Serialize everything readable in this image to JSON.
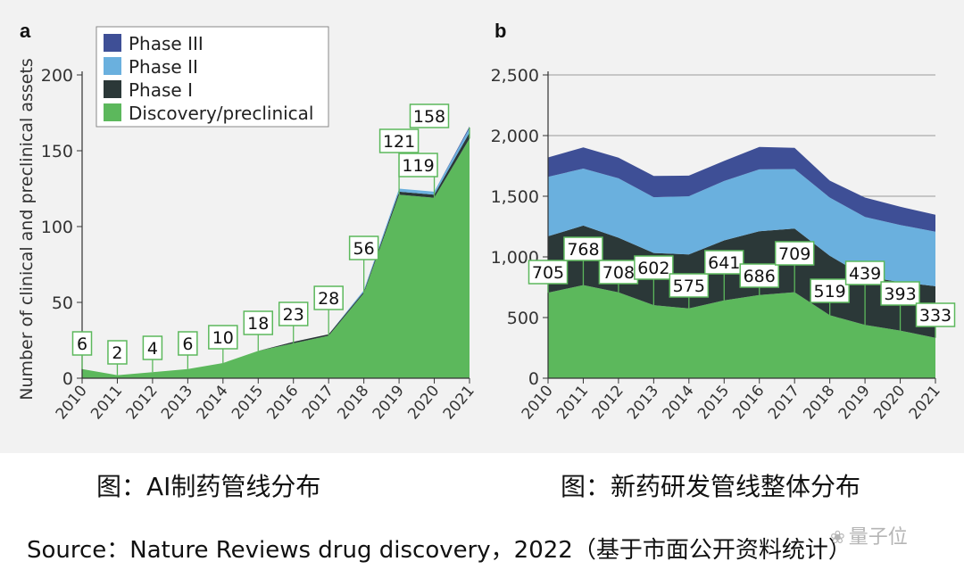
{
  "captions": {
    "panel_a": "图：AI制药管线分布",
    "panel_b": "图：新药研发管线整体分布",
    "source": "Source：Nature Reviews drug discovery，2022（基于市面公开资料统计）",
    "watermark": "量子位"
  },
  "colors": {
    "phase3": "#3e4f96",
    "phase2": "#6ab0de",
    "phase1": "#2b3838",
    "discovery": "#5cb85c",
    "label_border": "#5cb85c"
  },
  "chart_data": [
    {
      "panel": "a",
      "type": "area",
      "stacked": true,
      "ylabel": "Number of clinical and preclinical assets",
      "x": [
        "2010",
        "2011",
        "2012",
        "2013",
        "2014",
        "2015",
        "2016",
        "2017",
        "2018",
        "2019",
        "2020",
        "2021"
      ],
      "ylim": [
        0,
        200
      ],
      "yticks": [
        0,
        50,
        100,
        150,
        200
      ],
      "legend": [
        "Phase III",
        "Phase II",
        "Phase I",
        "Discovery/preclinical"
      ],
      "legend_position": "top-left",
      "series": [
        {
          "name": "Discovery/preclinical",
          "values": [
            6,
            2,
            4,
            6,
            10,
            18,
            23,
            28,
            56,
            121,
            119,
            158
          ]
        },
        {
          "name": "Phase I",
          "values": [
            0,
            0,
            0,
            0,
            0,
            0,
            1,
            1,
            1,
            2,
            2,
            4
          ]
        },
        {
          "name": "Phase II",
          "values": [
            0,
            0,
            0,
            0,
            0,
            0,
            0,
            0,
            1,
            2,
            2,
            3
          ]
        },
        {
          "name": "Phase III",
          "values": [
            0,
            0,
            0,
            0,
            0,
            0,
            0,
            0,
            0,
            0,
            0,
            1
          ]
        }
      ],
      "labels": [
        "6",
        "2",
        "4",
        "6",
        "10",
        "18",
        "23",
        "28",
        "56",
        "121",
        "119",
        "158"
      ]
    },
    {
      "panel": "b",
      "type": "area",
      "stacked": true,
      "x": [
        "2010",
        "2011",
        "2012",
        "2013",
        "2014",
        "2015",
        "2016",
        "2017",
        "2018",
        "2019",
        "2020",
        "2021"
      ],
      "ylim": [
        0,
        2500
      ],
      "yticks": [
        "0",
        "500",
        "1,000",
        "1,500",
        "2,000",
        "2,500"
      ],
      "ytick_values": [
        0,
        500,
        1000,
        1500,
        2000,
        2500
      ],
      "series": [
        {
          "name": "Discovery/preclinical",
          "values": [
            705,
            768,
            708,
            602,
            575,
            641,
            686,
            709,
            519,
            439,
            393,
            333
          ]
        },
        {
          "name": "Phase I",
          "values": [
            465,
            490,
            450,
            430,
            445,
            495,
            525,
            525,
            490,
            400,
            400,
            425
          ]
        },
        {
          "name": "Phase II",
          "values": [
            490,
            470,
            490,
            460,
            480,
            490,
            510,
            490,
            480,
            490,
            470,
            450
          ]
        },
        {
          "name": "Phase III",
          "values": [
            160,
            175,
            170,
            175,
            170,
            165,
            185,
            175,
            140,
            160,
            150,
            140
          ]
        }
      ],
      "labels": [
        "705",
        "768",
        "708",
        "602",
        "575",
        "641",
        "686",
        "709",
        "519",
        "439",
        "393",
        "333"
      ]
    }
  ]
}
